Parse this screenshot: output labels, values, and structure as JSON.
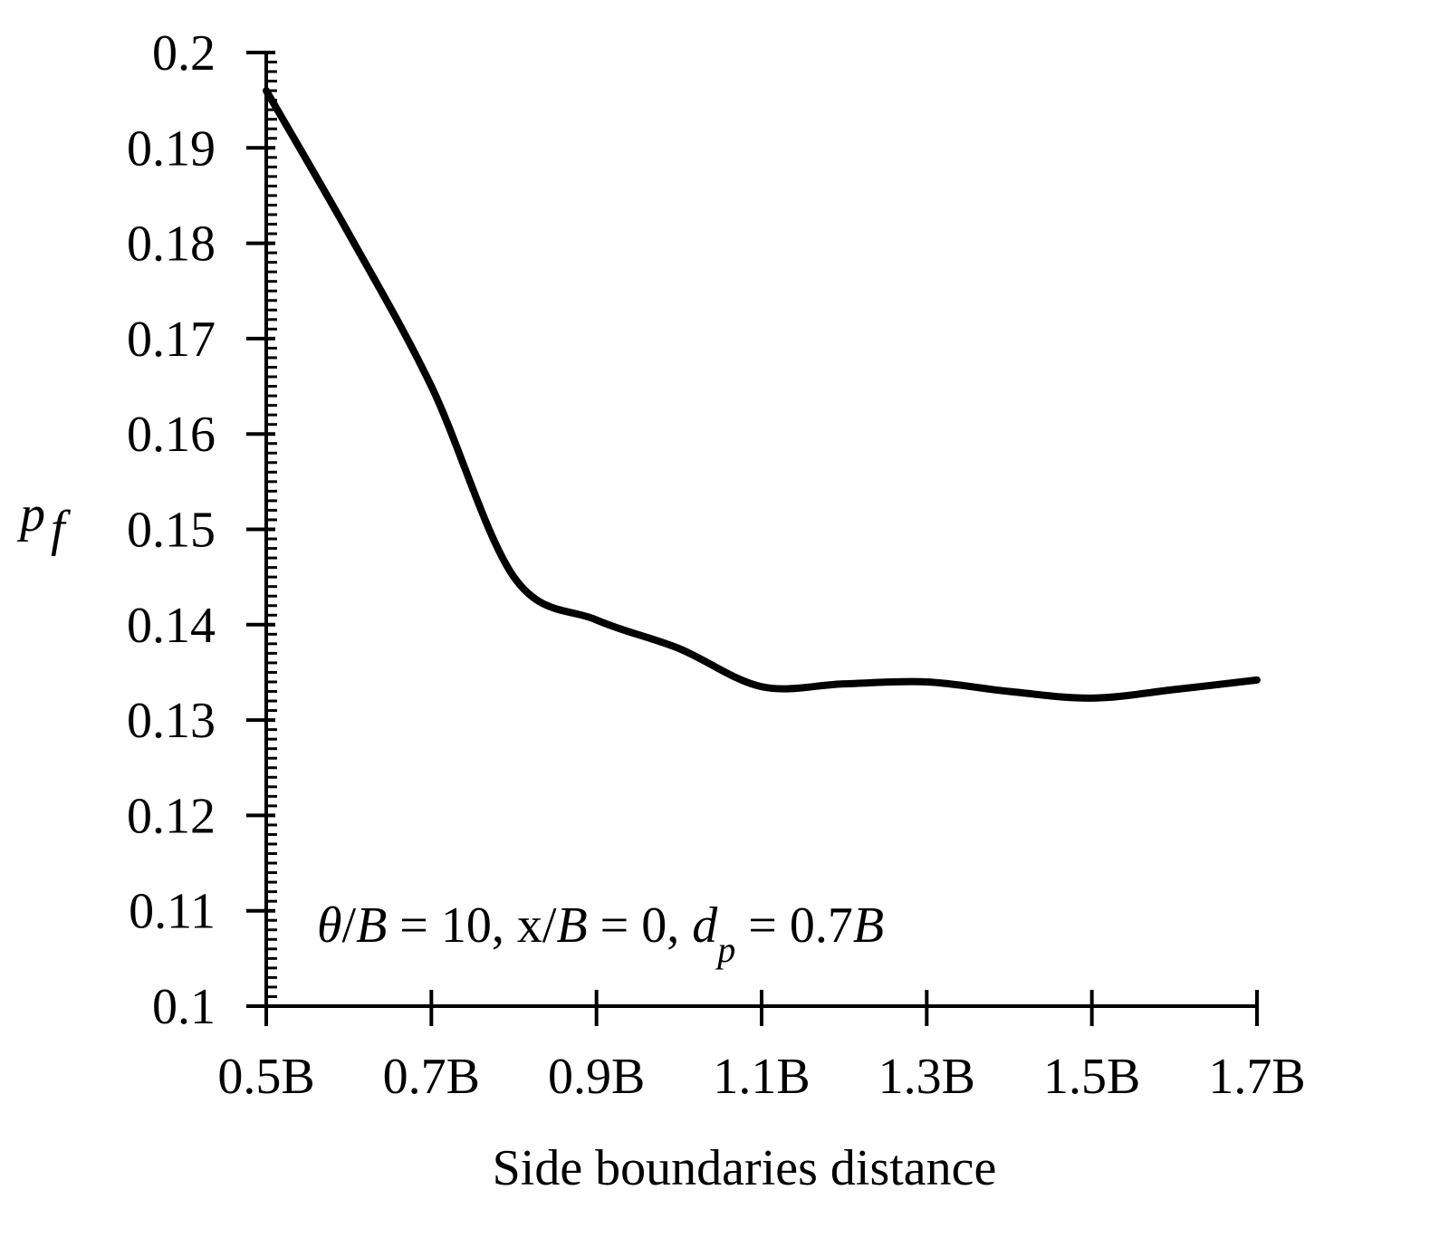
{
  "chart_data": {
    "type": "line",
    "xlabel": "Side boundaries distance",
    "ylabel": {
      "base": "p",
      "subscript": "f"
    },
    "x_ticks": [
      "0.5B",
      "0.7B",
      "0.9B",
      "1.1B",
      "1.3B",
      "1.5B",
      "1.7B"
    ],
    "y_ticks": [
      "0.1",
      "0.11",
      "0.12",
      "0.13",
      "0.14",
      "0.15",
      "0.16",
      "0.17",
      "0.18",
      "0.19",
      "0.2"
    ],
    "xlim": [
      0.5,
      1.7
    ],
    "ylim": [
      0.1,
      0.2
    ],
    "grid": false,
    "legend": "none",
    "series": [
      {
        "x": [
          0.5,
          0.6,
          0.7,
          0.8,
          0.9,
          1.0,
          1.1,
          1.2,
          1.3,
          1.4,
          1.5,
          1.6,
          1.7
        ],
        "y": [
          0.196,
          0.181,
          0.165,
          0.145,
          0.1405,
          0.1375,
          0.1335,
          0.1338,
          0.134,
          0.133,
          0.1323,
          0.1332,
          0.1342
        ]
      }
    ],
    "annotation": {
      "parts": [
        {
          "text": "θ",
          "italic": true
        },
        {
          "text": "/",
          "italic": false
        },
        {
          "text": "B",
          "italic": true
        },
        {
          "text": " = 10,  x/",
          "italic": false
        },
        {
          "text": "B",
          "italic": true
        },
        {
          "text": " = 0,  ",
          "italic": false
        },
        {
          "text": "d",
          "italic": true
        },
        {
          "text": "p",
          "italic": true,
          "subscript": true
        },
        {
          "text": " = 0.7",
          "italic": false
        },
        {
          "text": "B",
          "italic": true
        }
      ]
    },
    "colors": {
      "line": "#000000",
      "axis": "#000000",
      "background": "#ffffff"
    }
  }
}
